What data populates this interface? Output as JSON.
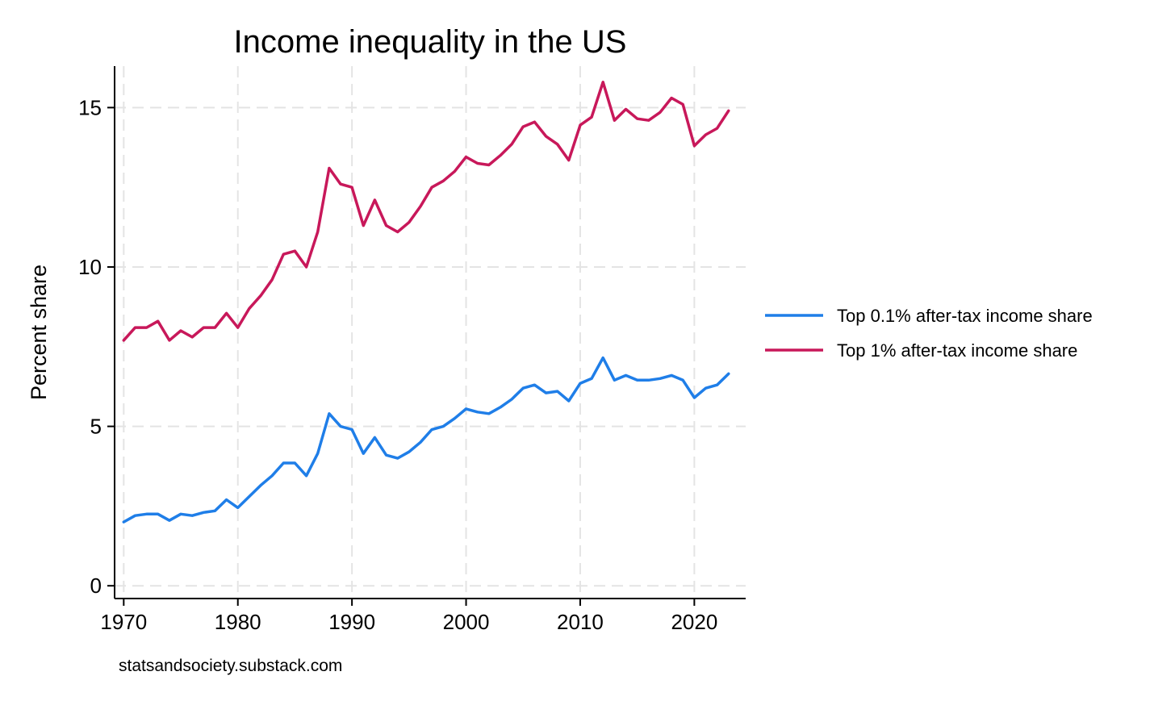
{
  "chart_data": {
    "type": "line",
    "title": "Income inequality in the US",
    "xlabel": "",
    "ylabel": "Percent share",
    "xlim": [
      1969.2,
      2024.5
    ],
    "ylim": [
      -0.4,
      16.3
    ],
    "x_ticks": [
      1970,
      1980,
      1990,
      2000,
      2010,
      2020
    ],
    "y_ticks": [
      0,
      5,
      10,
      15
    ],
    "grid": true,
    "legend_position": "right",
    "x": [
      1970,
      1971,
      1972,
      1973,
      1974,
      1975,
      1976,
      1977,
      1978,
      1979,
      1980,
      1981,
      1982,
      1983,
      1984,
      1985,
      1986,
      1987,
      1988,
      1989,
      1990,
      1991,
      1992,
      1993,
      1994,
      1995,
      1996,
      1997,
      1998,
      1999,
      2000,
      2001,
      2002,
      2003,
      2004,
      2005,
      2006,
      2007,
      2008,
      2009,
      2010,
      2011,
      2012,
      2013,
      2014,
      2015,
      2016,
      2017,
      2018,
      2019,
      2020,
      2021,
      2022,
      2023
    ],
    "series": [
      {
        "name": "Top 0.1% after-tax income share",
        "color": "#1f7ee8",
        "values": [
          2.0,
          2.2,
          2.25,
          2.25,
          2.05,
          2.25,
          2.2,
          2.3,
          2.35,
          2.7,
          2.45,
          2.8,
          3.15,
          3.45,
          3.85,
          3.85,
          3.45,
          4.15,
          5.4,
          5.0,
          4.9,
          4.15,
          4.65,
          4.1,
          4.0,
          4.2,
          4.5,
          4.9,
          5.0,
          5.25,
          5.55,
          5.45,
          5.4,
          5.6,
          5.85,
          6.2,
          6.3,
          6.05,
          6.1,
          5.8,
          6.35,
          6.5,
          7.15,
          6.45,
          6.6,
          6.45,
          6.45,
          6.5,
          6.6,
          6.45,
          5.9,
          6.2,
          6.3,
          6.65
        ]
      },
      {
        "name": "Top 1% after-tax income share",
        "color": "#c8185a",
        "values": [
          7.7,
          8.1,
          8.1,
          8.3,
          7.7,
          8.0,
          7.8,
          8.1,
          8.1,
          8.55,
          8.1,
          8.7,
          9.1,
          9.6,
          10.4,
          10.5,
          10.0,
          11.1,
          13.1,
          12.6,
          12.5,
          11.3,
          12.1,
          11.3,
          11.1,
          11.4,
          11.9,
          12.5,
          12.7,
          13.0,
          13.45,
          13.25,
          13.2,
          13.5,
          13.85,
          14.4,
          14.55,
          14.1,
          13.85,
          13.35,
          14.45,
          14.7,
          15.8,
          14.6,
          14.95,
          14.65,
          14.6,
          14.85,
          15.3,
          15.1,
          13.8,
          14.15,
          14.35,
          14.9
        ]
      }
    ],
    "source_note": "statsandsociety.substack.com"
  }
}
